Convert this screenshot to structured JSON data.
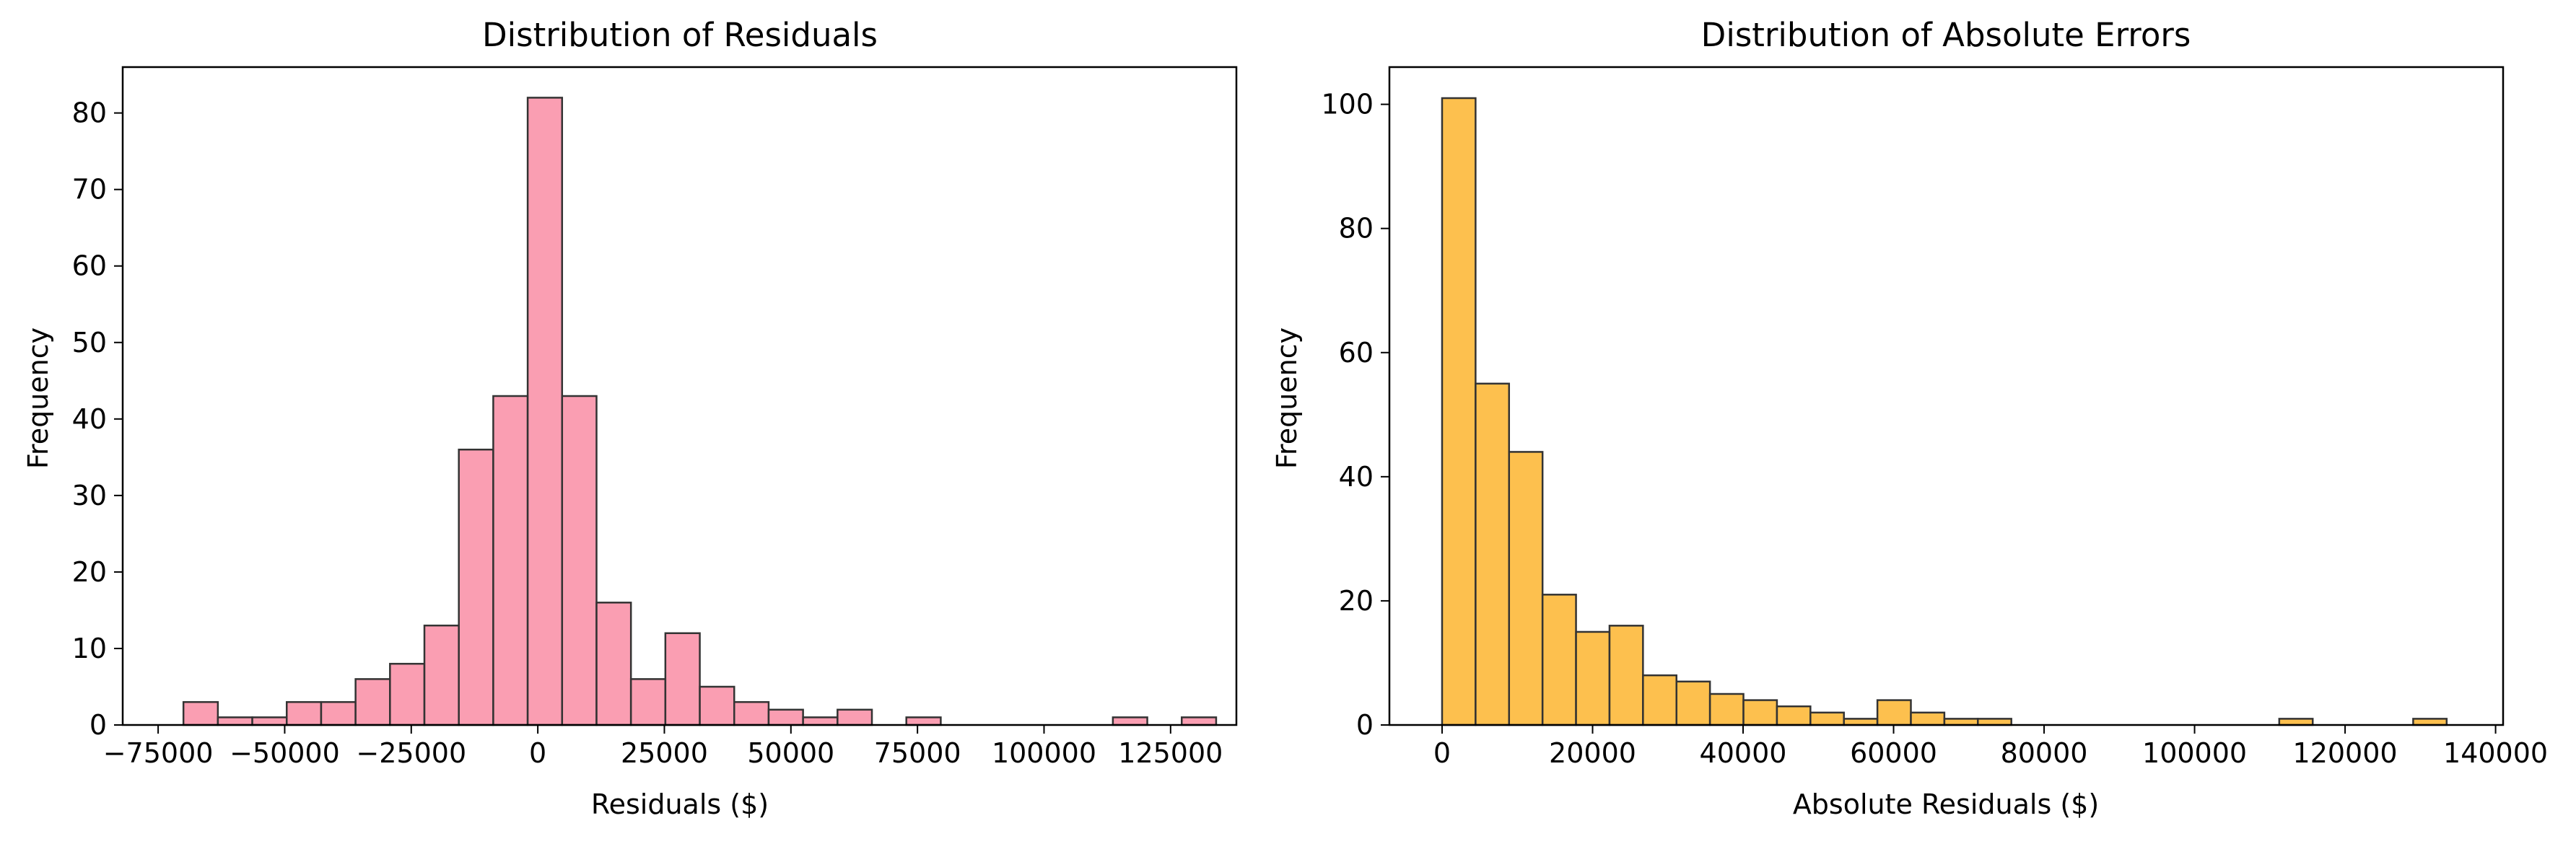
{
  "chart_data": [
    {
      "type": "bar",
      "title": "Distribution of Residuals",
      "xlabel": "Residuals ($)",
      "ylabel": "Frequency",
      "color": "#F98DA5",
      "edge_color": "#333333",
      "bin_start": -70000,
      "bin_width": 6800,
      "values": [
        3,
        1,
        1,
        3,
        3,
        6,
        8,
        13,
        36,
        43,
        82,
        43,
        16,
        6,
        12,
        5,
        3,
        2,
        1,
        2,
        0,
        1,
        0,
        0,
        0,
        0,
        0,
        1,
        0,
        1
      ],
      "xlim": [
        -82000,
        138000
      ],
      "ylim": [
        0,
        86
      ],
      "xticks": [
        -75000,
        -50000,
        -25000,
        0,
        25000,
        50000,
        75000,
        100000,
        125000
      ],
      "xtick_labels": [
        "−75000",
        "−50000",
        "−25000",
        "0",
        "25000",
        "50000",
        "75000",
        "100000",
        "125000"
      ],
      "yticks": [
        0,
        10,
        20,
        30,
        40,
        50,
        60,
        70,
        80
      ],
      "ytick_labels": [
        "0",
        "10",
        "20",
        "30",
        "40",
        "50",
        "60",
        "70",
        "80"
      ],
      "grid": false
    },
    {
      "type": "bar",
      "title": "Distribution of Absolute Errors",
      "xlabel": "Absolute Residuals ($)",
      "ylabel": "Frequency",
      "color": "#FDB52F",
      "edge_color": "#333333",
      "bin_start": 0,
      "bin_width": 4450,
      "values": [
        101,
        55,
        44,
        21,
        15,
        16,
        8,
        7,
        5,
        4,
        3,
        2,
        1,
        4,
        2,
        1,
        1,
        0,
        0,
        0,
        0,
        0,
        0,
        0,
        0,
        1,
        0,
        0,
        0,
        1
      ],
      "xlim": [
        -7000,
        141000
      ],
      "ylim": [
        0,
        106
      ],
      "xticks": [
        0,
        20000,
        40000,
        60000,
        80000,
        100000,
        120000,
        140000
      ],
      "xtick_labels": [
        "0",
        "20000",
        "40000",
        "60000",
        "80000",
        "100000",
        "120000",
        "140000"
      ],
      "yticks": [
        0,
        20,
        40,
        60,
        80,
        100
      ],
      "ytick_labels": [
        "0",
        "20",
        "40",
        "60",
        "80",
        "100"
      ],
      "grid": false
    }
  ]
}
